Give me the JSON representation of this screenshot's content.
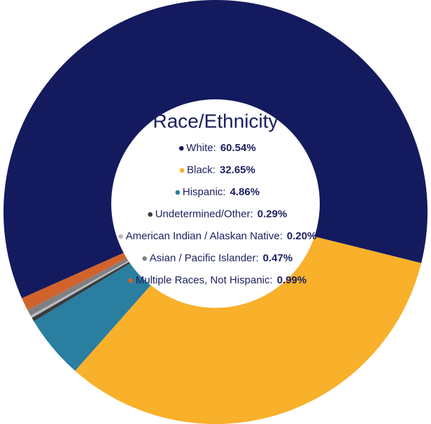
{
  "chart_data": {
    "type": "donut",
    "title": "Race/Ethnicity",
    "categories": [
      "White:",
      "Black:",
      "Hispanic:",
      "Undetermined/Other:",
      "American Indian / Alaskan Native:",
      "Asian / Pacific Islander:",
      "Multiple Races, Not Hispanic:"
    ],
    "values": [
      60.54,
      32.65,
      4.86,
      0.29,
      0.2,
      0.47,
      0.99
    ],
    "value_labels": [
      "60.54%",
      "32.65%",
      "4.86%",
      "0.29%",
      "0.20%",
      "0.47%",
      "0.99%"
    ],
    "colors": [
      "#141a5e",
      "#f9b02a",
      "#2a7ea0",
      "#3a3a3a",
      "#b7b9c4",
      "#808080",
      "#d2622c"
    ]
  }
}
